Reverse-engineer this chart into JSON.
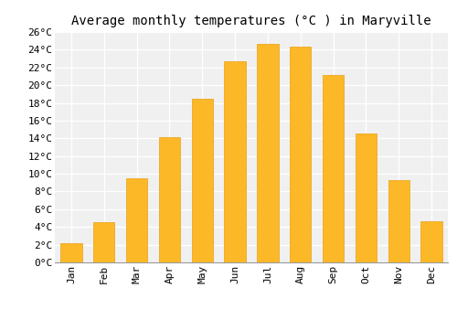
{
  "title": "Average monthly temperatures (°C ) in Maryville",
  "months": [
    "Jan",
    "Feb",
    "Mar",
    "Apr",
    "May",
    "Jun",
    "Jul",
    "Aug",
    "Sep",
    "Oct",
    "Nov",
    "Dec"
  ],
  "temperatures": [
    2.2,
    4.5,
    9.5,
    14.1,
    18.5,
    22.7,
    24.7,
    24.3,
    21.1,
    14.5,
    9.3,
    4.6
  ],
  "bar_color": "#FDB827",
  "bar_edge_color": "#E8A010",
  "ylim": [
    0,
    26
  ],
  "yticks": [
    0,
    2,
    4,
    6,
    8,
    10,
    12,
    14,
    16,
    18,
    20,
    22,
    24,
    26
  ],
  "ytick_labels": [
    "0°C",
    "2°C",
    "4°C",
    "6°C",
    "8°C",
    "10°C",
    "12°C",
    "14°C",
    "16°C",
    "18°C",
    "20°C",
    "22°C",
    "24°C",
    "26°C"
  ],
  "background_color": "#ffffff",
  "plot_bg_color": "#f0f0f0",
  "grid_color": "#ffffff",
  "title_fontsize": 10,
  "tick_fontsize": 8,
  "font_family": "monospace",
  "bar_width": 0.65
}
